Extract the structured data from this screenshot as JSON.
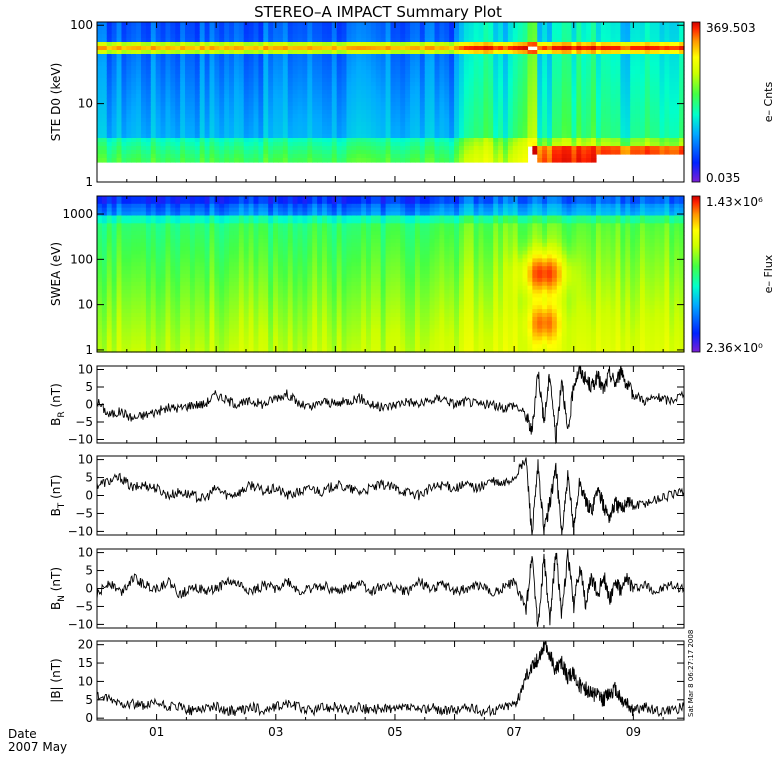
{
  "title": "STEREO–A IMPACT Summary Plot",
  "footer": {
    "date_label": "Date",
    "date_value": "2007 May",
    "stamp": "Sat Mar 8 06:27:17 2008"
  },
  "x_axis": {
    "unit": "day of May 2007",
    "range": [
      0,
      9.85
    ],
    "tick_labels": [
      "01",
      "03",
      "05",
      "07",
      "09"
    ],
    "tick_values": [
      1,
      3,
      5,
      7,
      9
    ]
  },
  "colors": {
    "palette": [
      "#7b1fd6",
      "#0022ff",
      "#00aaff",
      "#00ffcc",
      "#44ff44",
      "#ccff00",
      "#ffff00",
      "#ff9900",
      "#ff2200",
      "#cc0000"
    ]
  },
  "chart_data": [
    {
      "type": "heatmap",
      "name": "ste",
      "ylabel": "STE D0 (keV)",
      "yscale": "log",
      "ylim": [
        1,
        110
      ],
      "y_tick_labels": [
        "1",
        "10",
        "100"
      ],
      "y_tick_values": [
        1,
        10,
        100
      ],
      "colorbar": {
        "label": "e– Cnts",
        "max_label": "369.503",
        "min_label": "0.035",
        "range": [
          0.035,
          369.503
        ]
      },
      "energy_band_keV": [
        2,
        100
      ],
      "bright_band_keV": 50
    },
    {
      "type": "heatmap",
      "name": "swea",
      "ylabel": "SWEA (eV)",
      "yscale": "log",
      "ylim": [
        0.9,
        2500
      ],
      "y_tick_labels": [
        "1",
        "10",
        "100",
        "1000"
      ],
      "y_tick_values": [
        1,
        10,
        100,
        1000
      ],
      "colorbar": {
        "label": "e– Flux",
        "max_label": "1.43×10⁶",
        "min_label": "2.36×10⁰",
        "range": [
          2.36,
          1430000
        ]
      },
      "peak_day": 7.5,
      "peak_energy_eV": 50
    },
    {
      "type": "line",
      "name": "br",
      "ylabel_main": "B",
      "ylabel_sub": "R",
      "ylabel_unit": " (nT)",
      "ylim": [
        -11,
        11
      ],
      "y_tick_labels": [
        "10",
        "5",
        "0",
        "−5",
        "−10"
      ],
      "y_tick_values": [
        10,
        5,
        0,
        -5,
        -10
      ],
      "x": [
        0,
        0.2,
        0.4,
        0.6,
        0.8,
        1.0,
        1.2,
        1.4,
        1.6,
        1.8,
        2.0,
        2.2,
        2.4,
        2.6,
        2.8,
        3.0,
        3.2,
        3.4,
        3.6,
        3.8,
        4.0,
        4.2,
        4.4,
        4.6,
        4.8,
        5.0,
        5.2,
        5.4,
        5.6,
        5.8,
        6.0,
        6.2,
        6.4,
        6.6,
        6.8,
        7.0,
        7.2,
        7.3,
        7.4,
        7.5,
        7.6,
        7.7,
        7.8,
        7.9,
        8.0,
        8.1,
        8.2,
        8.3,
        8.4,
        8.5,
        8.6,
        8.7,
        8.8,
        8.9,
        9.0,
        9.2,
        9.4,
        9.6,
        9.85
      ],
      "values": [
        1,
        -3,
        -2,
        -4,
        -3,
        -2,
        -1,
        -1,
        0,
        0,
        3,
        1,
        0,
        1,
        0,
        2,
        3,
        0,
        -1,
        1,
        0,
        1,
        2,
        0,
        -1,
        0,
        1,
        0,
        1,
        2,
        0,
        1,
        0,
        0,
        -1,
        0,
        -3,
        -8,
        10,
        -5,
        9,
        -10,
        8,
        -9,
        6,
        10,
        7,
        5,
        8,
        4,
        9,
        6,
        10,
        5,
        3,
        1,
        2,
        1,
        3
      ]
    },
    {
      "type": "line",
      "name": "bt",
      "ylabel_main": "B",
      "ylabel_sub": "T",
      "ylabel_unit": " (nT)",
      "ylim": [
        -11,
        11
      ],
      "y_tick_labels": [
        "10",
        "5",
        "0",
        "−5",
        "−10"
      ],
      "y_tick_values": [
        10,
        5,
        0,
        -5,
        -10
      ],
      "x": [
        0,
        0.2,
        0.4,
        0.6,
        0.8,
        1.0,
        1.2,
        1.4,
        1.6,
        1.8,
        2.0,
        2.2,
        2.4,
        2.6,
        2.8,
        3.0,
        3.2,
        3.4,
        3.6,
        3.8,
        4.0,
        4.2,
        4.4,
        4.6,
        4.8,
        5.0,
        5.2,
        5.4,
        5.6,
        5.8,
        6.0,
        6.2,
        6.4,
        6.6,
        6.8,
        7.0,
        7.2,
        7.3,
        7.4,
        7.5,
        7.6,
        7.7,
        7.8,
        7.9,
        8.0,
        8.1,
        8.2,
        8.3,
        8.4,
        8.5,
        8.6,
        8.7,
        8.8,
        8.9,
        9.0,
        9.2,
        9.4,
        9.6,
        9.85
      ],
      "values": [
        3,
        4,
        5,
        2,
        3,
        2,
        0,
        1,
        0,
        -1,
        2,
        0,
        1,
        3,
        1,
        2,
        0,
        1,
        2,
        1,
        3,
        2,
        1,
        2,
        3,
        2,
        1,
        0,
        2,
        3,
        2,
        3,
        2,
        4,
        3,
        5,
        10,
        -11,
        8,
        -10,
        -2,
        8,
        -11,
        5,
        -9,
        4,
        -2,
        -4,
        2,
        -3,
        -6,
        -2,
        -4,
        -1,
        -3,
        -2,
        -1,
        0,
        1
      ]
    },
    {
      "type": "line",
      "name": "bn",
      "ylabel_main": "B",
      "ylabel_sub": "N",
      "ylabel_unit": " (nT)",
      "ylim": [
        -11,
        11
      ],
      "y_tick_labels": [
        "10",
        "5",
        "0",
        "−5",
        "−10"
      ],
      "y_tick_values": [
        10,
        5,
        0,
        -5,
        -10
      ],
      "x": [
        0,
        0.2,
        0.4,
        0.6,
        0.8,
        1.0,
        1.2,
        1.4,
        1.6,
        1.8,
        2.0,
        2.2,
        2.4,
        2.6,
        2.8,
        3.0,
        3.2,
        3.4,
        3.6,
        3.8,
        4.0,
        4.2,
        4.4,
        4.6,
        4.8,
        5.0,
        5.2,
        5.4,
        5.6,
        5.8,
        6.0,
        6.2,
        6.4,
        6.6,
        6.8,
        7.0,
        7.2,
        7.3,
        7.4,
        7.5,
        7.6,
        7.7,
        7.8,
        7.9,
        8.0,
        8.1,
        8.2,
        8.3,
        8.4,
        8.5,
        8.6,
        8.7,
        8.8,
        8.9,
        9.0,
        9.2,
        9.4,
        9.6,
        9.85
      ],
      "values": [
        -2,
        2,
        -1,
        3,
        1,
        0,
        2,
        -2,
        1,
        -1,
        0,
        2,
        1,
        -1,
        1,
        0,
        2,
        -1,
        0,
        1,
        -1,
        0,
        2,
        -1,
        1,
        0,
        -1,
        2,
        0,
        1,
        -1,
        0,
        1,
        -1,
        0,
        2,
        -6,
        10,
        -11,
        9,
        -10,
        11,
        -8,
        10,
        -5,
        6,
        -4,
        3,
        -2,
        4,
        -3,
        2,
        -1,
        3,
        0,
        1,
        -1,
        1,
        0
      ]
    },
    {
      "type": "line",
      "name": "bmag",
      "ylabel_main": "|B| (nT)",
      "ylim": [
        -0.5,
        21
      ],
      "y_tick_labels": [
        "20",
        "15",
        "10",
        "5",
        "0"
      ],
      "y_tick_values": [
        20,
        15,
        10,
        5,
        0
      ],
      "x": [
        0,
        0.2,
        0.4,
        0.6,
        0.8,
        1.0,
        1.2,
        1.4,
        1.6,
        1.8,
        2.0,
        2.2,
        2.4,
        2.6,
        2.8,
        3.0,
        3.2,
        3.4,
        3.6,
        3.8,
        4.0,
        4.2,
        4.4,
        4.6,
        4.8,
        5.0,
        5.2,
        5.4,
        5.6,
        5.8,
        6.0,
        6.2,
        6.4,
        6.6,
        6.8,
        7.0,
        7.1,
        7.2,
        7.3,
        7.4,
        7.5,
        7.6,
        7.7,
        7.8,
        7.9,
        8.0,
        8.1,
        8.2,
        8.3,
        8.4,
        8.5,
        8.6,
        8.7,
        8.8,
        8.9,
        9.0,
        9.2,
        9.4,
        9.6,
        9.85
      ],
      "values": [
        6,
        5,
        4,
        4,
        3,
        4,
        3,
        3,
        2,
        3,
        3,
        2,
        2,
        3,
        2,
        3,
        4,
        3,
        2,
        3,
        3,
        2,
        3,
        2,
        3,
        2,
        3,
        2,
        3,
        2,
        2,
        3,
        2,
        2,
        3,
        4,
        6,
        12,
        14,
        16,
        20,
        17,
        13,
        15,
        11,
        12,
        9,
        8,
        7,
        6,
        5,
        7,
        8,
        5,
        4,
        2,
        3,
        2,
        2,
        3
      ]
    }
  ]
}
